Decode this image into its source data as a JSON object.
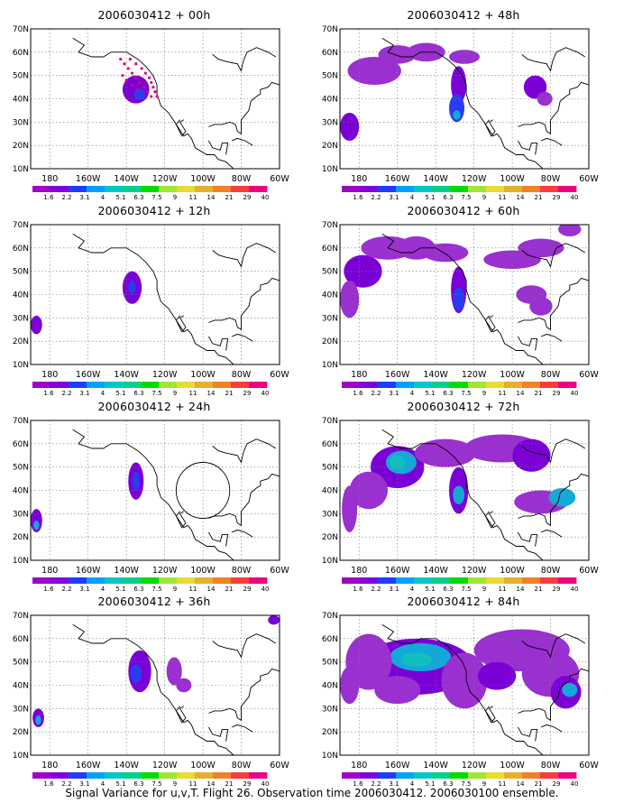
{
  "figure": {
    "caption": "Signal Variance for u,v,T. Flight 26. Observation time 2006030412. 2006030100 ensemble."
  },
  "map": {
    "lat_labels": [
      "70N",
      "60N",
      "50N",
      "40N",
      "30N",
      "20N",
      "10N"
    ],
    "lon_labels": [
      "180",
      "160W",
      "140W",
      "120W",
      "100W",
      "80W",
      "60W"
    ],
    "lon_range": [
      -190,
      -60
    ],
    "lat_range": [
      10,
      70
    ]
  },
  "colorbar": {
    "labels": [
      "1.6",
      "2.2",
      "3.1",
      "4",
      "5.1",
      "6.3",
      "7.5",
      "9",
      "11",
      "14",
      "21",
      "29",
      "40"
    ],
    "colors": [
      "#a000c8",
      "#8200dc",
      "#1e3cff",
      "#00a0ff",
      "#00c8c8",
      "#00d28c",
      "#00dc00",
      "#a0e632",
      "#e6dc32",
      "#e6af2d",
      "#f08228",
      "#fa3c3c",
      "#f00082"
    ]
  },
  "panels": [
    {
      "title": "2006030412 + 00h",
      "blobs": [
        [
          -135,
          44,
          7,
          6,
          2
        ],
        [
          -133,
          42,
          3,
          2.5,
          3
        ]
      ],
      "dots": true,
      "circle": false
    },
    {
      "title": "2006030412 + 48h",
      "blobs": [
        [
          -172,
          52,
          14,
          6,
          1
        ],
        [
          -160,
          59,
          10,
          4,
          1
        ],
        [
          -145,
          60,
          10,
          4,
          1
        ],
        [
          -128,
          46,
          4,
          8,
          2
        ],
        [
          -129,
          36,
          4,
          6,
          3
        ],
        [
          -129,
          33,
          2,
          2,
          4
        ],
        [
          -125,
          58,
          8,
          3,
          1
        ],
        [
          -88,
          45,
          6,
          5,
          2
        ],
        [
          -185,
          28,
          5,
          6,
          2
        ],
        [
          -83,
          40,
          4,
          3,
          1
        ]
      ],
      "dots": false,
      "circle": false
    },
    {
      "title": "2006030412 + 12h",
      "blobs": [
        [
          -137,
          43,
          5,
          7,
          2
        ],
        [
          -137,
          43,
          2,
          3,
          3
        ],
        [
          -187,
          27,
          3,
          4,
          2
        ]
      ],
      "dots": false,
      "circle": false
    },
    {
      "title": "2006030412 + 60h",
      "blobs": [
        [
          -178,
          50,
          10,
          7,
          2
        ],
        [
          -165,
          60,
          14,
          5,
          1
        ],
        [
          -150,
          60,
          10,
          5,
          1
        ],
        [
          -135,
          58,
          12,
          4,
          1
        ],
        [
          -128,
          42,
          4,
          10,
          2
        ],
        [
          -128,
          38,
          3,
          5,
          3
        ],
        [
          -100,
          55,
          15,
          4,
          1
        ],
        [
          -85,
          60,
          12,
          4,
          1
        ],
        [
          -90,
          40,
          8,
          4,
          1
        ],
        [
          -85,
          35,
          6,
          4,
          1
        ],
        [
          -185,
          38,
          5,
          8,
          1
        ],
        [
          -70,
          68,
          6,
          3,
          1
        ]
      ],
      "dots": false,
      "circle": false
    },
    {
      "title": "2006030412 + 24h",
      "blobs": [
        [
          -135,
          44,
          4,
          8,
          2
        ],
        [
          -135,
          44,
          2,
          4,
          3
        ],
        [
          -187,
          27,
          3,
          5,
          2
        ],
        [
          -187,
          25,
          1.5,
          2,
          4
        ]
      ],
      "dots": false,
      "circle": true
    },
    {
      "title": "2006030412 + 72h",
      "blobs": [
        [
          -160,
          50,
          14,
          9,
          2
        ],
        [
          -158,
          52,
          8,
          5,
          4
        ],
        [
          -160,
          52,
          4,
          3,
          5
        ],
        [
          -175,
          40,
          10,
          8,
          1
        ],
        [
          -135,
          56,
          16,
          6,
          1
        ],
        [
          -128,
          40,
          5,
          10,
          2
        ],
        [
          -128,
          38,
          3,
          4,
          4
        ],
        [
          -105,
          58,
          20,
          6,
          1
        ],
        [
          -90,
          55,
          10,
          7,
          2
        ],
        [
          -85,
          35,
          14,
          5,
          1
        ],
        [
          -74,
          37,
          7,
          4,
          4
        ],
        [
          -185,
          32,
          4,
          10,
          1
        ]
      ],
      "dots": false,
      "circle": false
    },
    {
      "title": "2006030412 + 36h",
      "blobs": [
        [
          -133,
          46,
          6,
          9,
          2
        ],
        [
          -135,
          45,
          3,
          4,
          3
        ],
        [
          -115,
          46,
          4,
          6,
          1
        ],
        [
          -110,
          40,
          4,
          3,
          1
        ],
        [
          -186,
          26,
          3,
          4,
          2
        ],
        [
          -186,
          25,
          1.5,
          2,
          4
        ],
        [
          -63,
          68,
          3,
          2,
          2
        ]
      ],
      "dots": false,
      "circle": false
    },
    {
      "title": "2006030412 + 84h",
      "blobs": [
        [
          -150,
          48,
          30,
          12,
          2
        ],
        [
          -148,
          52,
          16,
          6,
          4
        ],
        [
          -150,
          51,
          8,
          3,
          5
        ],
        [
          -175,
          50,
          12,
          12,
          1
        ],
        [
          -125,
          42,
          12,
          12,
          1
        ],
        [
          -95,
          55,
          25,
          9,
          1
        ],
        [
          -80,
          45,
          15,
          10,
          1
        ],
        [
          -72,
          37,
          8,
          7,
          2
        ],
        [
          -70,
          38,
          4,
          3,
          4
        ],
        [
          -160,
          38,
          12,
          6,
          1
        ],
        [
          -185,
          40,
          5,
          8,
          1
        ],
        [
          -108,
          44,
          10,
          6,
          2
        ]
      ],
      "dots": false,
      "circle": false
    }
  ]
}
